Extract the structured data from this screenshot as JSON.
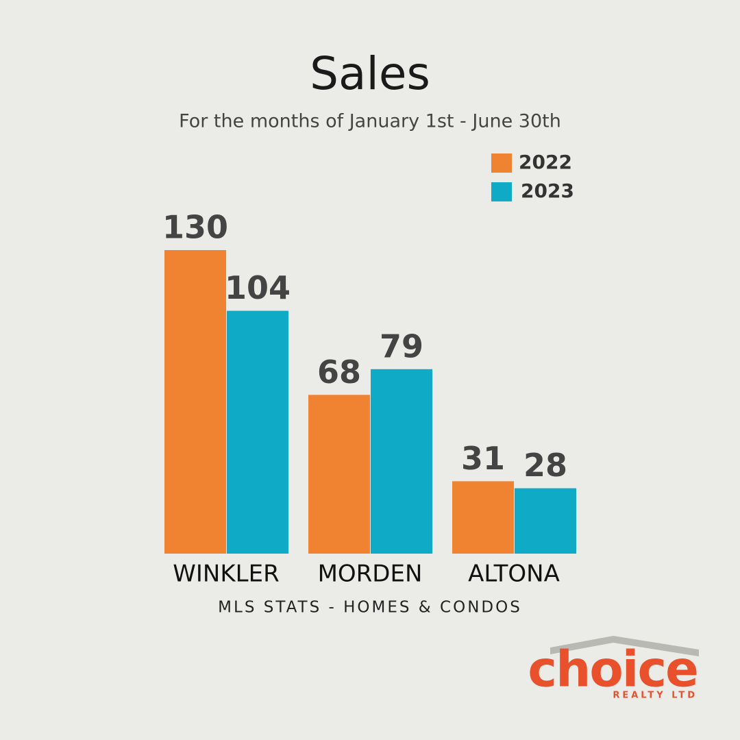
{
  "chart_data": {
    "type": "bar",
    "title": "Sales",
    "subtitle": "For the months of January 1st - June 30th",
    "caption": "MLS STATS - HOMES & CONDOS",
    "categories": [
      "WINKLER",
      "MORDEN",
      "ALTONA"
    ],
    "series": [
      {
        "name": "2022",
        "color": "#f08332",
        "values": [
          130,
          68,
          31
        ]
      },
      {
        "name": "2023",
        "color": "#0eaac6",
        "values": [
          104,
          79,
          28
        ]
      }
    ],
    "legend": "top-right"
  },
  "logo": {
    "name": "choice",
    "tagline": "REALTY LTD"
  }
}
